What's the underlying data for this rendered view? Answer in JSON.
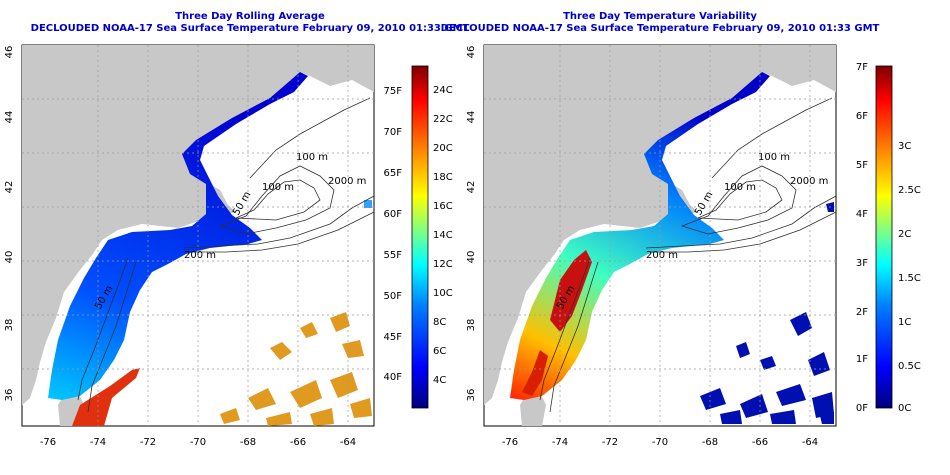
{
  "colors": {
    "land": "#c8c8c8",
    "title": "#0000cc",
    "contour": "#303030",
    "grid": "#9a9a9a",
    "scale_ramp": [
      "#00007f",
      "#0000ff",
      "#0080ff",
      "#00ffff",
      "#80ff80",
      "#ffff00",
      "#ff8000",
      "#ff0000",
      "#7f0000"
    ]
  },
  "panels": [
    {
      "title": "Three Day Rolling Average",
      "subtitle": "DECLOUDED NOAA-17 Sea Surface Temperature February 09, 2010 01:33 GMT",
      "x_ticks": [
        "-76",
        "-74",
        "-72",
        "-70",
        "-68",
        "-66",
        "-64"
      ],
      "y_ticks": [
        "36",
        "38",
        "40",
        "42",
        "44",
        "46"
      ],
      "contour_labels": [
        "100 m",
        "2000 m",
        "100 m",
        "200 m",
        "50 m",
        "50 m"
      ],
      "colorbar": {
        "left_labels": [
          "75F",
          "70F",
          "65F",
          "60F",
          "55F",
          "50F",
          "45F",
          "40F"
        ],
        "right_labels": [
          "24C",
          "22C",
          "20C",
          "18C",
          "16C",
          "14C",
          "12C",
          "10C",
          "8C",
          "6C",
          "4C"
        ]
      }
    },
    {
      "title": "Three Day Temperature Variability",
      "subtitle": "DECLOUDED NOAA-17 Sea Surface Temperature February 09, 2010 01:33 GMT",
      "x_ticks": [
        "-76",
        "-74",
        "-72",
        "-70",
        "-68",
        "-66",
        "-64"
      ],
      "y_ticks": [
        "36",
        "38",
        "40",
        "42",
        "44",
        "46"
      ],
      "contour_labels": [
        "100 m",
        "2000 m",
        "100 m",
        "200 m",
        "50 m",
        "50 m"
      ],
      "colorbar": {
        "left_labels": [
          "7F",
          "6F",
          "5F",
          "4F",
          "3F",
          "2F",
          "1F",
          "0F"
        ],
        "right_labels": [
          "3C",
          "2.5C",
          "2C",
          "1.5C",
          "1C",
          "0.5C",
          "0C"
        ]
      }
    }
  ]
}
